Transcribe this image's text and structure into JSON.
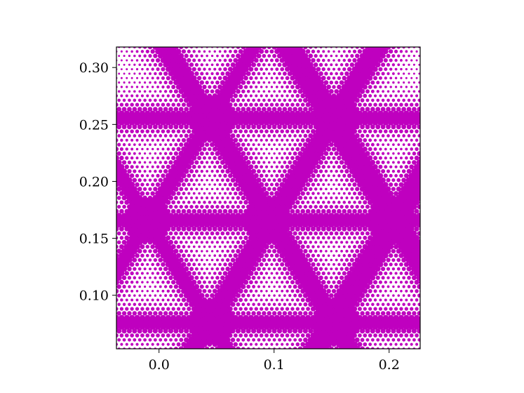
{
  "chart_data": {
    "type": "scatter",
    "title": "",
    "xlabel": "",
    "ylabel": "",
    "xlim": [
      -0.037,
      0.227
    ],
    "ylim": [
      0.053,
      0.318
    ],
    "x_ticks": [
      0.0,
      0.1,
      0.2
    ],
    "x_tick_labels": [
      "0.0",
      "0.1",
      "0.2"
    ],
    "y_ticks": [
      0.1,
      0.15,
      0.2,
      0.25,
      0.3
    ],
    "y_tick_labels": [
      "0.10",
      "0.15",
      "0.20",
      "0.25",
      "0.30"
    ],
    "grid": false,
    "legend": "none",
    "marker_color": "#bf00bf",
    "pattern": {
      "description": "Halftone dot field: dot size grows toward the edges of rounded triangular cells; dense magenta bands along y = const lines and two diagonal families",
      "band_y_values": [
        0.0755,
        0.1655,
        0.2555
      ],
      "node_points": [
        [
          0.045,
          0.0755
        ],
        [
          0.155,
          0.0755
        ],
        [
          -0.01,
          0.1655
        ],
        [
          0.095,
          0.1655
        ],
        [
          0.2,
          0.1655
        ],
        [
          0.045,
          0.2555
        ],
        [
          0.155,
          0.2555
        ]
      ],
      "diagonal_slope_abs": 1.65,
      "dot_spacing": 0.0045
    }
  }
}
